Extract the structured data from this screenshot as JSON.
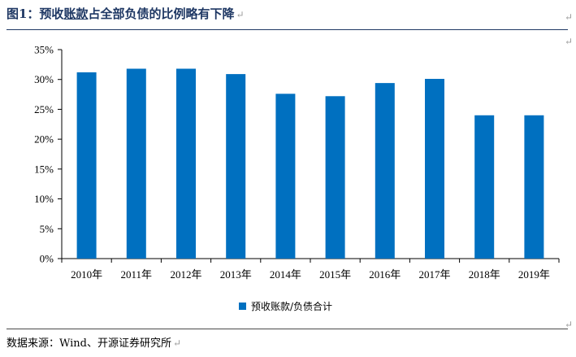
{
  "header": {
    "title_prefix": "图1：预收",
    "title_underlined": "账款",
    "title_suffix": "占全部负债的比例略有下降",
    "para_mark": "↵"
  },
  "footer": {
    "source": "数据来源：Wind、开源证券研究所"
  },
  "colors": {
    "bar": "#0070c0",
    "title": "#1f3864",
    "axis": "#000000"
  },
  "chart_data": {
    "type": "bar",
    "categories": [
      "2010年",
      "2011年",
      "2012年",
      "2013年",
      "2014年",
      "2015年",
      "2016年",
      "2017年",
      "2018年",
      "2019年"
    ],
    "series": [
      {
        "name": "预收账款/负债合计",
        "values": [
          31.2,
          31.8,
          31.8,
          30.9,
          27.6,
          27.2,
          29.4,
          30.1,
          24.0,
          24.0
        ]
      }
    ],
    "yticks": [
      "0%",
      "5%",
      "10%",
      "15%",
      "20%",
      "25%",
      "30%",
      "35%"
    ],
    "ylim": [
      0,
      35
    ],
    "grid": false,
    "legend_position": "bottom"
  }
}
